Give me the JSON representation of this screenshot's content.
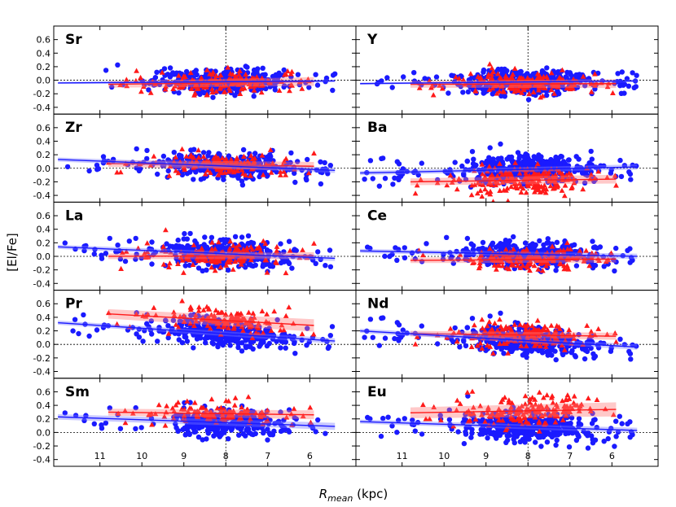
{
  "chart_data": {
    "type": "scatter",
    "xlabel_main": "R",
    "xlabel_sub": "mean",
    "xlabel_unit": " (kpc)",
    "ylabel": "[El/Fe]",
    "xlim": [
      12.1,
      4.9
    ],
    "ylim": [
      -0.5,
      0.8
    ],
    "x_ticks": [
      11,
      10,
      9,
      8,
      7,
      6
    ],
    "x_tick_labels": [
      "11",
      "10",
      "9",
      "8",
      "7",
      "6"
    ],
    "y_ticks": [
      0.6,
      0.4,
      0.2,
      0.0,
      -0.2,
      -0.4
    ],
    "y_tick_labels": [
      "0.6",
      "0.4",
      "0.2",
      "0.0",
      "-0.2",
      "-0.4"
    ],
    "ref_x": 8.0,
    "ref_y": 0.0,
    "colors": {
      "thin_disc": "#1a1aff",
      "thick_disc": "#ff1a1a",
      "thin_band": "#7878ff",
      "thick_band": "#ff7878"
    },
    "marker_types": {
      "thin_disc": "circle",
      "thick_disc": "triangle"
    },
    "panels": [
      {
        "element": "Sr",
        "blue": {
          "n": 340,
          "xrange": [
            5.4,
            11.0
          ],
          "line": [
            [
              12.0,
              -0.04
            ],
            [
              5.4,
              -0.01
            ]
          ],
          "band": 0.015,
          "mean": -0.02,
          "scatter": 0.09
        },
        "red": {
          "n": 150,
          "xrange": [
            6.0,
            10.8
          ],
          "line": [
            [
              10.8,
              -0.06
            ],
            [
              5.9,
              -0.02
            ]
          ],
          "band": 0.05,
          "mean": -0.04,
          "scatter": 0.08
        }
      },
      {
        "element": "Y",
        "blue": {
          "n": 420,
          "xrange": [
            5.4,
            11.9
          ],
          "line": [
            [
              12.0,
              -0.05
            ],
            [
              5.4,
              -0.01
            ]
          ],
          "band": 0.015,
          "mean": -0.03,
          "scatter": 0.09
        },
        "red": {
          "n": 170,
          "xrange": [
            5.9,
            10.8
          ],
          "line": [
            [
              10.8,
              -0.06
            ],
            [
              5.9,
              -0.05
            ]
          ],
          "band": 0.05,
          "mean": -0.05,
          "scatter": 0.09
        }
      },
      {
        "element": "Zr",
        "blue": {
          "n": 360,
          "xrange": [
            5.4,
            11.9
          ],
          "line": [
            [
              12.0,
              0.13
            ],
            [
              5.4,
              -0.03
            ]
          ],
          "band": 0.03,
          "mean": 0.04,
          "scatter": 0.09
        },
        "red": {
          "n": 150,
          "xrange": [
            5.9,
            10.8
          ],
          "line": [
            [
              10.8,
              0.07
            ],
            [
              5.9,
              0.03
            ]
          ],
          "band": 0.05,
          "mean": 0.04,
          "scatter": 0.09
        }
      },
      {
        "element": "Ba",
        "blue": {
          "n": 440,
          "xrange": [
            5.4,
            11.9
          ],
          "line": [
            [
              12.0,
              -0.07
            ],
            [
              5.4,
              0.02
            ]
          ],
          "band": 0.03,
          "mean": 0.0,
          "scatter": 0.1
        },
        "red": {
          "n": 190,
          "xrange": [
            5.9,
            10.8
          ],
          "line": [
            [
              10.8,
              -0.2
            ],
            [
              5.9,
              -0.16
            ]
          ],
          "band": 0.05,
          "mean": -0.18,
          "scatter": 0.1
        }
      },
      {
        "element": "La",
        "blue": {
          "n": 400,
          "xrange": [
            5.4,
            11.9
          ],
          "line": [
            [
              12.0,
              0.14
            ],
            [
              5.4,
              -0.03
            ]
          ],
          "band": 0.03,
          "mean": 0.03,
          "scatter": 0.1
        },
        "red": {
          "n": 150,
          "xrange": [
            5.9,
            10.8
          ],
          "line": [
            [
              10.8,
              0.0
            ],
            [
              5.9,
              0.01
            ]
          ],
          "band": 0.04,
          "mean": 0.0,
          "scatter": 0.09
        }
      },
      {
        "element": "Ce",
        "blue": {
          "n": 420,
          "xrange": [
            5.4,
            11.9
          ],
          "line": [
            [
              12.0,
              0.08
            ],
            [
              5.4,
              0.0
            ]
          ],
          "band": 0.03,
          "mean": 0.03,
          "scatter": 0.09
        },
        "red": {
          "n": 160,
          "xrange": [
            5.9,
            10.8
          ],
          "line": [
            [
              10.8,
              -0.06
            ],
            [
              5.9,
              -0.04
            ]
          ],
          "band": 0.04,
          "mean": -0.05,
          "scatter": 0.08
        }
      },
      {
        "element": "Pr",
        "blue": {
          "n": 330,
          "xrange": [
            5.4,
            11.9
          ],
          "line": [
            [
              12.0,
              0.32
            ],
            [
              5.4,
              0.05
            ]
          ],
          "band": 0.03,
          "mean": 0.2,
          "scatter": 0.1
        },
        "red": {
          "n": 130,
          "xrange": [
            5.9,
            10.8
          ],
          "line": [
            [
              10.8,
              0.45
            ],
            [
              5.9,
              0.28
            ]
          ],
          "band": 0.07,
          "mean": 0.36,
          "scatter": 0.1
        }
      },
      {
        "element": "Nd",
        "blue": {
          "n": 400,
          "xrange": [
            5.4,
            11.9
          ],
          "line": [
            [
              12.0,
              0.2
            ],
            [
              5.4,
              -0.04
            ]
          ],
          "band": 0.03,
          "mean": 0.08,
          "scatter": 0.1
        },
        "red": {
          "n": 160,
          "xrange": [
            5.9,
            10.8
          ],
          "line": [
            [
              10.8,
              0.16
            ],
            [
              5.9,
              0.12
            ]
          ],
          "band": 0.04,
          "mean": 0.14,
          "scatter": 0.09
        }
      },
      {
        "element": "Sm",
        "blue": {
          "n": 300,
          "xrange": [
            5.4,
            11.9
          ],
          "line": [
            [
              12.0,
              0.23
            ],
            [
              5.4,
              0.09
            ]
          ],
          "band": 0.04,
          "mean": 0.15,
          "scatter": 0.1
        },
        "red": {
          "n": 110,
          "xrange": [
            5.9,
            10.8
          ],
          "line": [
            [
              10.8,
              0.3
            ],
            [
              5.9,
              0.26
            ]
          ],
          "band": 0.05,
          "mean": 0.28,
          "scatter": 0.09
        }
      },
      {
        "element": "Eu",
        "blue": {
          "n": 420,
          "xrange": [
            5.4,
            11.9
          ],
          "line": [
            [
              12.0,
              0.16
            ],
            [
              5.4,
              0.03
            ]
          ],
          "band": 0.03,
          "mean": 0.1,
          "scatter": 0.1
        },
        "red": {
          "n": 170,
          "xrange": [
            5.9,
            10.8
          ],
          "line": [
            [
              10.8,
              0.29
            ],
            [
              5.9,
              0.34
            ]
          ],
          "band": 0.08,
          "mean": 0.31,
          "scatter": 0.12
        }
      }
    ]
  }
}
